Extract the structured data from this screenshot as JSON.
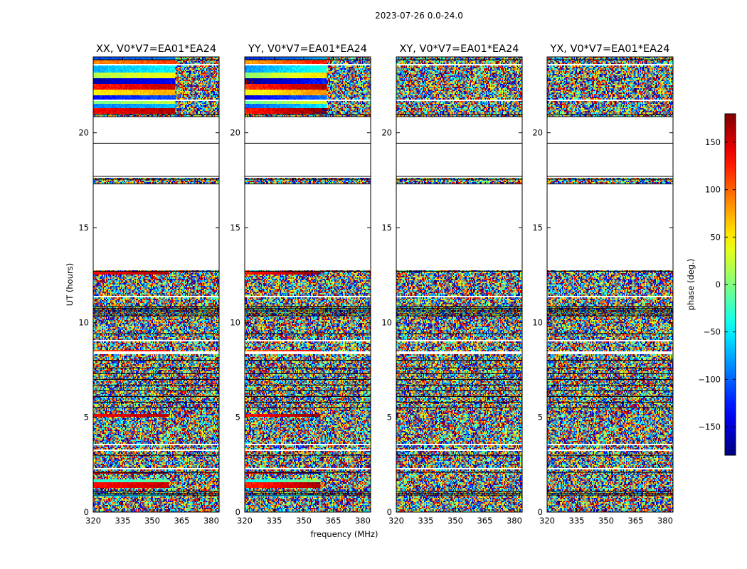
{
  "chart_data": {
    "type": "heatmap",
    "suptitle": "2023-07-26 0.0-24.0",
    "xlabel": "frequency (MHz)",
    "ylabel": "UT (hours)",
    "xlim": [
      320,
      384
    ],
    "ylim": [
      0,
      24
    ],
    "xticks": [
      320,
      335,
      350,
      365,
      380
    ],
    "yticks": [
      0,
      5,
      10,
      15,
      20
    ],
    "panels": [
      {
        "title": "XX, V0*V7=EA01*EA24",
        "kind": "parallel"
      },
      {
        "title": "YY, V0*V7=EA01*EA24",
        "kind": "parallel"
      },
      {
        "title": "XY, V0*V7=EA01*EA24",
        "kind": "cross"
      },
      {
        "title": "YX, V0*V7=EA01*EA24",
        "kind": "cross"
      }
    ],
    "blank_ut_ranges": [
      [
        0.95,
        1.0
      ],
      [
        2.25,
        2.3
      ],
      [
        3.05,
        3.1
      ],
      [
        3.25,
        3.3
      ],
      [
        3.55,
        3.6
      ],
      [
        8.35,
        8.45
      ],
      [
        9.0,
        9.05
      ],
      [
        11.35,
        11.4
      ],
      [
        12.75,
        17.35
      ],
      [
        17.6,
        20.85
      ],
      [
        21.65,
        21.75
      ],
      [
        22.25,
        22.3
      ],
      [
        23.55,
        23.6
      ]
    ],
    "flag_lines_ut": [
      0.9,
      1.0,
      1.1,
      2.1,
      3.0,
      5.5,
      5.8,
      6.1,
      6.4,
      6.7,
      7.0,
      7.3,
      7.6,
      8.0,
      9.4,
      10.35,
      10.45,
      10.55,
      10.65,
      10.75,
      10.85,
      12.7,
      17.3,
      17.55,
      17.7,
      19.45,
      20.85,
      20.95,
      23.85
    ],
    "coherent_bands_ut": [
      [
        0.8,
        0.9,
        -60
      ],
      [
        1.3,
        1.6,
        145
      ],
      [
        1.6,
        1.7,
        -20
      ],
      [
        2.0,
        2.1,
        170
      ],
      [
        5.0,
        5.2,
        150
      ],
      [
        8.45,
        8.55,
        120
      ],
      [
        12.55,
        12.7,
        150
      ],
      [
        21.0,
        21.3,
        150
      ],
      [
        21.3,
        21.5,
        -80
      ],
      [
        21.5,
        21.65,
        10
      ],
      [
        21.75,
        22.0,
        -120
      ],
      [
        22.0,
        22.25,
        60
      ],
      [
        22.3,
        22.6,
        140
      ],
      [
        22.6,
        22.9,
        -150
      ],
      [
        22.9,
        23.2,
        30
      ],
      [
        23.2,
        23.55,
        -60
      ],
      [
        23.6,
        23.85,
        100
      ],
      [
        23.85,
        24.0,
        -100
      ]
    ],
    "colorbar": {
      "label": "phase (deg.)",
      "range": [
        -180,
        180
      ],
      "ticks": [
        150,
        100,
        50,
        0,
        -50,
        -100,
        -150
      ],
      "tick_labels": [
        "150",
        "100",
        "50",
        "0",
        "−50",
        "−100",
        "−150"
      ],
      "colormap": "jet"
    }
  }
}
